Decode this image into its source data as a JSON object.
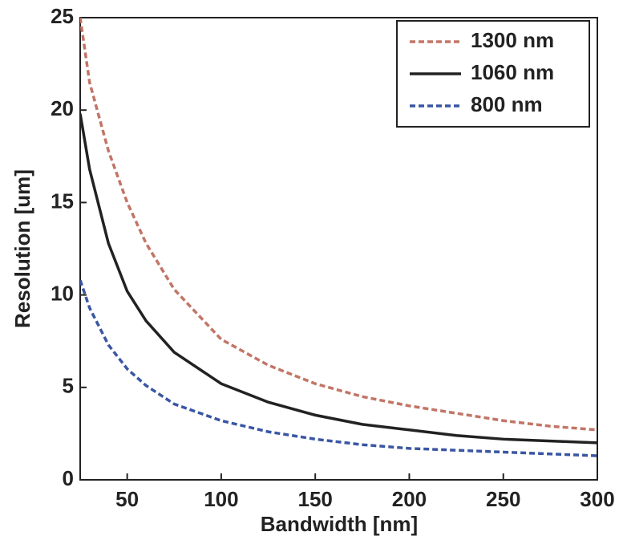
{
  "chart_data": {
    "type": "line",
    "x_label": "Bandwidth [nm]",
    "y_label": "Resolution [um]",
    "x": [
      25,
      30,
      40,
      50,
      60,
      75,
      100,
      125,
      150,
      175,
      200,
      225,
      250,
      275,
      300
    ],
    "series": [
      {
        "name": "1300 nm",
        "color": "#c27566",
        "dash": true,
        "values": [
          25,
          21.5,
          17.8,
          15.0,
          12.8,
          10.3,
          7.6,
          6.2,
          5.2,
          4.5,
          4.0,
          3.6,
          3.2,
          2.9,
          2.7
        ]
      },
      {
        "name": "1060 nm",
        "color": "#222222",
        "dash": false,
        "values": [
          19.8,
          16.8,
          12.8,
          10.2,
          8.6,
          6.9,
          5.2,
          4.2,
          3.5,
          3.0,
          2.7,
          2.4,
          2.2,
          2.1,
          2.0
        ]
      },
      {
        "name": "800 nm",
        "color": "#3a56a3",
        "dash": true,
        "values": [
          10.8,
          9.3,
          7.3,
          6.0,
          5.1,
          4.1,
          3.2,
          2.6,
          2.2,
          1.9,
          1.7,
          1.6,
          1.5,
          1.4,
          1.3
        ]
      }
    ],
    "xlim": [
      25,
      300
    ],
    "xticks": [
      50,
      100,
      150,
      200,
      250,
      300
    ],
    "ylim": [
      0,
      25
    ],
    "yticks": [
      0,
      5,
      10,
      15,
      20,
      25
    ],
    "legend": "top-right",
    "grid": false
  }
}
